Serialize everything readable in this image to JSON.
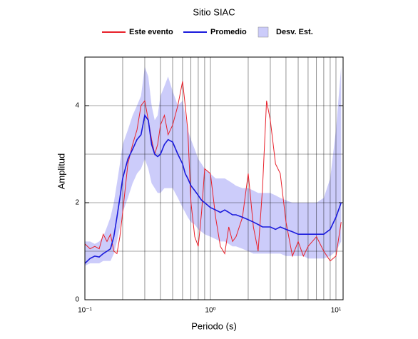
{
  "chart_data": {
    "type": "line",
    "title": "Sitio SIAC",
    "xlabel": "Periodo (s)",
    "ylabel": "Amplitud",
    "xscale": "log",
    "xlim": [
      0.1,
      11.4
    ],
    "ylim": [
      0,
      5
    ],
    "xticks": [
      {
        "value": 0.1,
        "label": "10⁻¹"
      },
      {
        "value": 1,
        "label": "10⁰"
      },
      {
        "value": 10,
        "label": "10¹"
      }
    ],
    "xminor_ticks": [
      0.2,
      0.3,
      0.4,
      0.5,
      0.6,
      0.7,
      0.8,
      0.9,
      2,
      3,
      4,
      5,
      6,
      7,
      8,
      9
    ],
    "yticks": [
      0,
      2,
      4
    ],
    "yminor_ticks": [
      1,
      3,
      5
    ],
    "grid": true,
    "x": [
      0.1,
      0.11,
      0.12,
      0.13,
      0.14,
      0.15,
      0.16,
      0.17,
      0.18,
      0.19,
      0.2,
      0.22,
      0.24,
      0.26,
      0.28,
      0.3,
      0.32,
      0.34,
      0.36,
      0.38,
      0.4,
      0.43,
      0.46,
      0.5,
      0.55,
      0.6,
      0.63,
      0.66,
      0.7,
      0.75,
      0.8,
      0.85,
      0.9,
      1.0,
      1.1,
      1.2,
      1.3,
      1.4,
      1.5,
      1.6,
      1.8,
      2.0,
      2.2,
      2.4,
      2.6,
      2.8,
      3.0,
      3.3,
      3.6,
      4.0,
      4.5,
      5.0,
      5.5,
      6.0,
      7.0,
      8.0,
      9.0,
      10.0,
      11.0
    ],
    "series": [
      {
        "name": "Este evento",
        "color": "#e8202a",
        "values": [
          1.15,
          1.05,
          1.1,
          1.05,
          1.35,
          1.2,
          1.35,
          1.0,
          0.95,
          1.3,
          1.8,
          2.8,
          3.2,
          3.5,
          4.0,
          4.1,
          3.7,
          3.3,
          3.0,
          3.2,
          3.6,
          3.8,
          3.4,
          3.6,
          4.0,
          4.5,
          4.0,
          3.5,
          2.0,
          1.3,
          1.1,
          1.8,
          2.7,
          2.6,
          1.7,
          1.1,
          0.95,
          1.5,
          1.2,
          1.3,
          1.7,
          2.6,
          1.5,
          1.0,
          2.3,
          4.1,
          3.7,
          2.8,
          2.6,
          1.6,
          0.9,
          1.2,
          0.9,
          1.1,
          1.3,
          1.0,
          0.8,
          0.9,
          1.6
        ]
      },
      {
        "name": "Promedio",
        "color": "#1a1adc",
        "values": [
          0.75,
          0.85,
          0.9,
          0.88,
          0.95,
          1.0,
          1.05,
          1.3,
          1.7,
          2.1,
          2.5,
          2.9,
          3.1,
          3.3,
          3.4,
          3.8,
          3.7,
          3.2,
          3.0,
          2.95,
          3.0,
          3.2,
          3.3,
          3.25,
          3.0,
          2.8,
          2.6,
          2.5,
          2.35,
          2.25,
          2.15,
          2.05,
          2.0,
          1.9,
          1.85,
          1.8,
          1.85,
          1.8,
          1.75,
          1.75,
          1.7,
          1.65,
          1.6,
          1.55,
          1.5,
          1.5,
          1.5,
          1.45,
          1.5,
          1.45,
          1.4,
          1.35,
          1.35,
          1.35,
          1.35,
          1.35,
          1.45,
          1.7,
          2.0
        ]
      }
    ],
    "band": {
      "name": "Desv. Est.",
      "color": "#ccccfa",
      "lower": [
        0.7,
        0.75,
        0.75,
        0.75,
        0.8,
        0.8,
        0.8,
        0.95,
        1.2,
        1.5,
        1.8,
        2.1,
        2.4,
        2.6,
        2.7,
        2.9,
        2.7,
        2.4,
        2.3,
        2.2,
        2.2,
        2.3,
        2.3,
        2.3,
        2.1,
        1.9,
        1.8,
        1.7,
        1.6,
        1.55,
        1.45,
        1.4,
        1.35,
        1.3,
        1.25,
        1.2,
        1.2,
        1.15,
        1.1,
        1.1,
        1.05,
        1.0,
        0.95,
        0.95,
        0.95,
        0.95,
        0.95,
        0.95,
        0.95,
        0.9,
        0.9,
        0.9,
        0.9,
        0.85,
        0.85,
        0.85,
        0.9,
        1.0,
        1.2
      ],
      "upper": [
        1.2,
        1.2,
        1.15,
        1.2,
        1.3,
        1.5,
        1.7,
        2.0,
        2.4,
        2.8,
        3.2,
        3.5,
        3.8,
        4.0,
        4.2,
        4.8,
        4.6,
        4.0,
        3.7,
        3.8,
        4.2,
        4.4,
        4.6,
        4.3,
        4.0,
        4.1,
        3.8,
        3.5,
        3.3,
        3.1,
        2.9,
        2.8,
        2.7,
        2.6,
        2.5,
        2.5,
        2.5,
        2.45,
        2.4,
        2.35,
        2.3,
        2.3,
        2.25,
        2.2,
        2.2,
        2.2,
        2.2,
        2.15,
        2.1,
        2.05,
        2.0,
        2.0,
        2.0,
        2.0,
        2.0,
        2.1,
        2.5,
        3.5,
        4.8
      ]
    }
  }
}
